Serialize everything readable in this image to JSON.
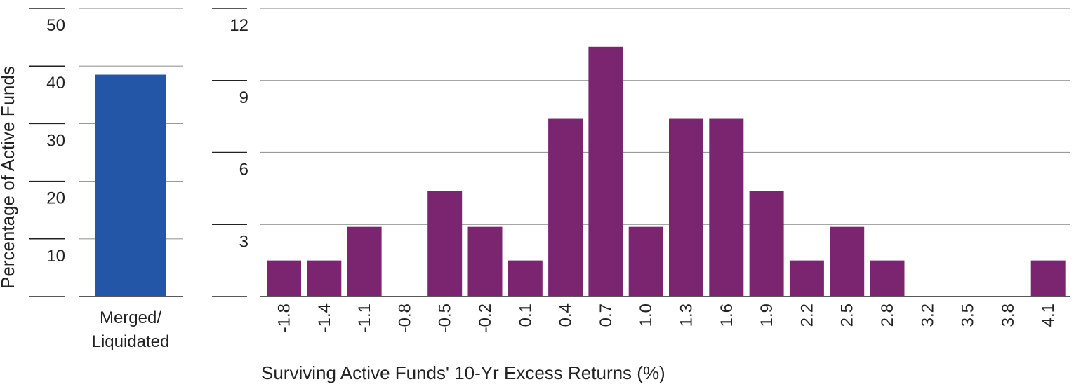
{
  "chart_data": [
    {
      "type": "bar",
      "ylabel": "Percentage of Active Funds",
      "ylim": [
        0,
        50
      ],
      "yticks": [
        10,
        20,
        30,
        40,
        50
      ],
      "categories": [
        "Merged/ Liquidated"
      ],
      "category_lines": [
        [
          "Merged/",
          "Liquidated"
        ]
      ],
      "values": [
        38.5
      ],
      "color": "#2356A6",
      "grid": true
    },
    {
      "type": "bar",
      "xlabel": "Surviving Active Funds' 10-Yr Excess Returns (%)",
      "ylim": [
        0,
        12
      ],
      "yticks": [
        3,
        6,
        9,
        12
      ],
      "categories": [
        "-1.8",
        "-1.4",
        "-1.1",
        "-0.8",
        "-0.5",
        "-0.2",
        "0.1",
        "0.4",
        "0.7",
        "1.0",
        "1.3",
        "1.6",
        "1.9",
        "2.2",
        "2.5",
        "2.8",
        "3.2",
        "3.5",
        "3.8",
        "4.1"
      ],
      "values": [
        1.5,
        1.5,
        2.9,
        0,
        4.4,
        2.9,
        1.5,
        7.4,
        10.4,
        2.9,
        7.4,
        7.4,
        4.4,
        1.5,
        2.9,
        1.5,
        0,
        0,
        0,
        1.5
      ],
      "color": "#7B2570",
      "grid": true
    }
  ]
}
